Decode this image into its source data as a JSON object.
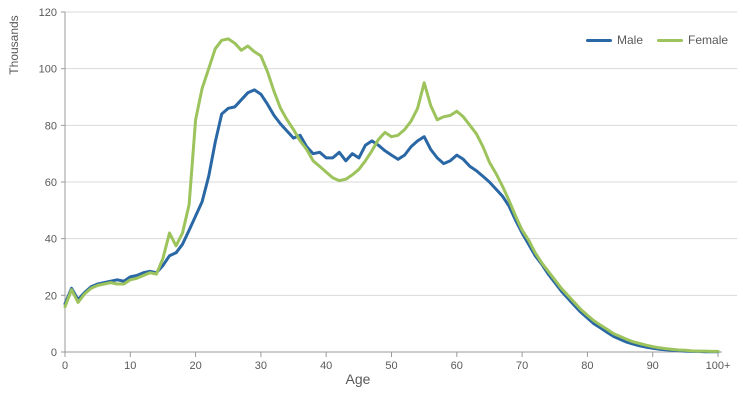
{
  "chart_data": {
    "type": "line",
    "title": "",
    "xlabel": "Age",
    "ylabel": "Thousands",
    "x_start": 0,
    "x_step": 1,
    "xlim": [
      0,
      100
    ],
    "ylim": [
      0,
      120
    ],
    "xtick_step": 10,
    "ytick_step": 20,
    "xtick_labels": [
      "0",
      "10",
      "20",
      "30",
      "40",
      "50",
      "60",
      "70",
      "80",
      "90",
      "100+"
    ],
    "ytick_labels": [
      "0",
      "20",
      "40",
      "60",
      "80",
      "100",
      "120"
    ],
    "grid": "horizontal",
    "legend_position": "top-right",
    "series": [
      {
        "name": "Male",
        "color": "#2A67A5",
        "values": [
          17,
          22.5,
          18.5,
          21,
          23,
          24,
          24.5,
          25,
          25.5,
          25,
          26.5,
          27,
          28,
          28.5,
          28,
          30.5,
          34,
          35,
          38,
          43,
          48,
          53,
          62,
          74,
          84,
          86,
          86.5,
          89,
          91.5,
          92.5,
          91,
          87.5,
          83.5,
          80.5,
          78,
          75.5,
          76.5,
          72.5,
          70,
          70.5,
          68.5,
          68.5,
          70.5,
          67.5,
          70,
          68.5,
          73,
          74.5,
          73,
          71,
          69.5,
          68,
          69.5,
          72.5,
          74.5,
          76,
          71.5,
          68.5,
          66.5,
          67.5,
          69.5,
          68,
          65.5,
          64,
          62,
          60,
          57.5,
          55,
          51.5,
          46.5,
          42,
          38,
          34,
          31,
          27.5,
          24.5,
          21.5,
          19,
          16.5,
          14,
          12,
          10,
          8.5,
          7,
          5.5,
          4.5,
          3.5,
          2.8,
          2.2,
          1.7,
          1.3,
          1,
          0.8,
          0.6,
          0.5,
          0.3,
          0.2,
          0.2,
          0.1,
          0.1,
          0.1
        ]
      },
      {
        "name": "Female",
        "color": "#9CC35C",
        "values": [
          16,
          22,
          17.5,
          20.5,
          22.5,
          23.5,
          24,
          24.5,
          24,
          24,
          25.5,
          26,
          27,
          28,
          27.5,
          33,
          42,
          37.5,
          42,
          52,
          82,
          93,
          100,
          107,
          110,
          110.5,
          109,
          106.5,
          108,
          106,
          104.5,
          99,
          92,
          86,
          82,
          78.5,
          74.5,
          71.5,
          67.5,
          65.5,
          63.5,
          61.5,
          60.5,
          61,
          62.5,
          64.5,
          67.5,
          71,
          75,
          77.5,
          76,
          76.5,
          78.5,
          81.5,
          86,
          95,
          87,
          82,
          83,
          83.5,
          85,
          83,
          80,
          77,
          72.5,
          67,
          63,
          58.5,
          53.5,
          48,
          43,
          39.5,
          35,
          31.5,
          28.5,
          25.5,
          22.5,
          20,
          17.5,
          15,
          13,
          11,
          9.5,
          8,
          6.5,
          5.5,
          4.5,
          3.6,
          3,
          2.4,
          1.9,
          1.5,
          1.2,
          0.9,
          0.7,
          0.6,
          0.4,
          0.3,
          0.3,
          0.2,
          0.2
        ]
      }
    ],
    "colors": {
      "grid": "#D9D9D9",
      "axis": "#9B9B9B",
      "text": "#595959"
    }
  }
}
